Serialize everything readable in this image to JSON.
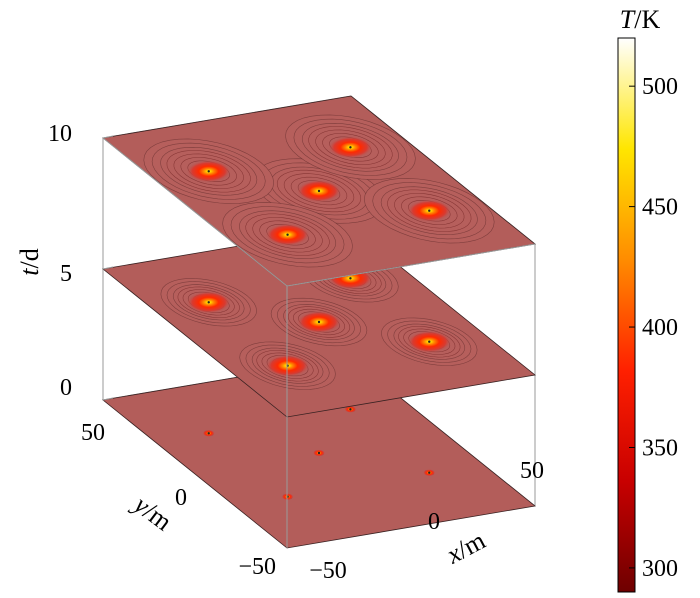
{
  "chart_data": {
    "type": "heatmap",
    "subtype": "3d-stacked-slices",
    "title": "",
    "xlabel": {
      "var": "x",
      "unit": "/m"
    },
    "ylabel": {
      "var": "y",
      "unit": "/m"
    },
    "zlabel": {
      "var": "t",
      "unit": "/d"
    },
    "x_ticks": [
      "−50",
      "0",
      "50"
    ],
    "y_ticks": [
      "50",
      "0",
      "−50"
    ],
    "z_ticks": [
      "0",
      "5",
      "10"
    ],
    "xlim": [
      -70,
      70
    ],
    "ylim": [
      -70,
      70
    ],
    "zlim": [
      0,
      10
    ],
    "colorbar": {
      "label": {
        "var": "T",
        "unit": "/K"
      },
      "ticks": [
        "300",
        "350",
        "400",
        "450",
        "500"
      ],
      "range": [
        290,
        520
      ],
      "colors": [
        "#6e0000",
        "#c80000",
        "#ff2000",
        "#ff8c00",
        "#ffe600",
        "#ffffff"
      ]
    },
    "background_color": "#b35d5a",
    "slices": [
      {
        "t": 0,
        "hot_spot_radius": 2
      },
      {
        "t": 5,
        "hot_spot_radius": 14
      },
      {
        "t": 10,
        "hot_spot_radius": 19
      }
    ],
    "heat_sources": [
      {
        "x": 0,
        "y": 0
      },
      {
        "x": 40,
        "y": 30
      },
      {
        "x": -40,
        "y": 30
      },
      {
        "x": -40,
        "y": -30
      },
      {
        "x": 40,
        "y": -30
      }
    ]
  }
}
